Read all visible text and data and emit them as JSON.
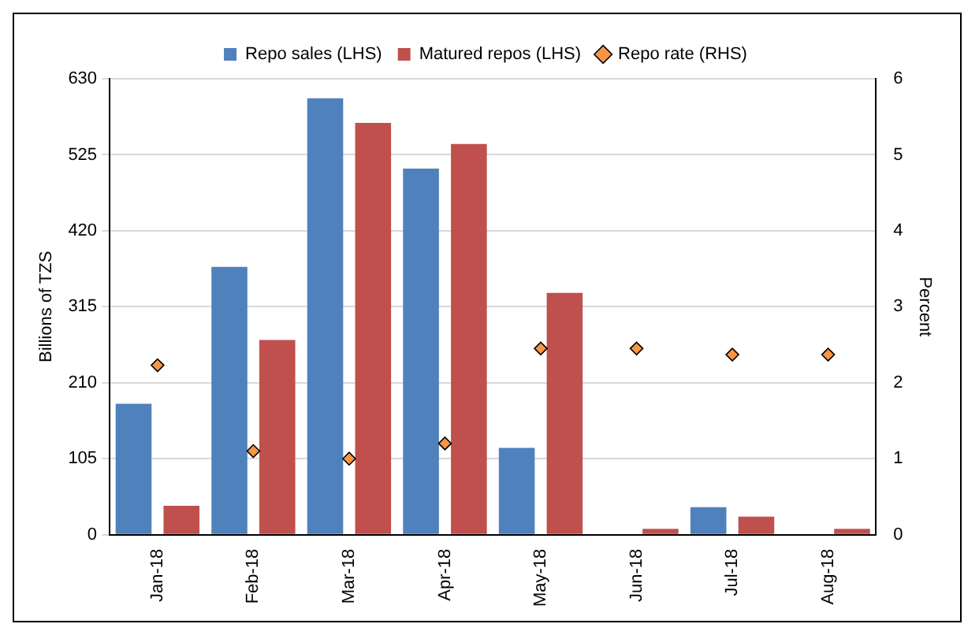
{
  "chart_data": {
    "type": "bar",
    "ylabel": "Billions of TZS",
    "y2label": "Percent",
    "categories": [
      "Jan-18",
      "Feb-18",
      "Mar-18",
      "Apr-18",
      "May-18",
      "Jun-18",
      "Jul-18",
      "Aug-18"
    ],
    "series": [
      {
        "name": "Repo sales (LHS)",
        "color": "#4f81bd",
        "values": [
          181,
          370,
          603,
          506,
          120,
          0,
          38,
          0
        ]
      },
      {
        "name": "Matured repos (LHS)",
        "color": "#c0504d",
        "values": [
          40,
          269,
          569,
          540,
          334,
          8,
          25,
          8
        ]
      },
      {
        "name": "Repo rate (RHS)",
        "type": "scatter",
        "axis": "y2",
        "marker": "diamond",
        "color": "#f79646",
        "values": [
          2.23,
          1.1,
          1.0,
          1.2,
          2.45,
          2.45,
          2.37,
          2.37
        ]
      }
    ],
    "ylim": [
      0,
      630
    ],
    "yticks": [
      0,
      105,
      210,
      315,
      420,
      525,
      630
    ],
    "y2lim": [
      0,
      6
    ],
    "y2ticks": [
      0,
      1,
      2,
      3,
      4,
      5,
      6
    ],
    "grid": "y",
    "legend": "top"
  }
}
